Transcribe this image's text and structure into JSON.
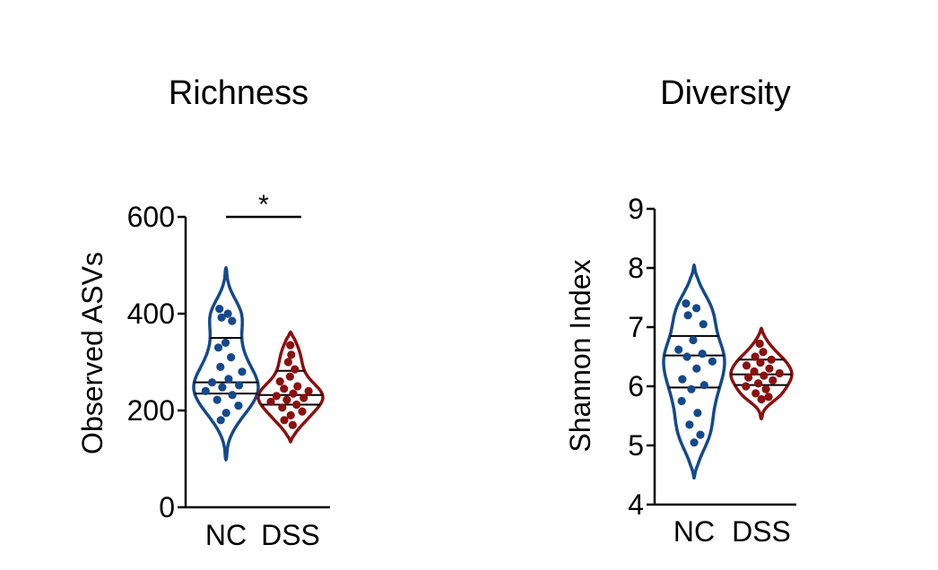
{
  "colors": {
    "NC": "#14498c",
    "DSS": "#8b1010",
    "axis": "#000000"
  },
  "chart_data": [
    {
      "type": "violin",
      "title": "Richness",
      "ylabel": "Observed ASVs",
      "ylim": [
        0,
        600
      ],
      "yticks": [
        0,
        200,
        400,
        600
      ],
      "categories": [
        "NC",
        "DSS"
      ],
      "significance": {
        "label": "*",
        "between": [
          "NC",
          "DSS"
        ]
      },
      "series": [
        {
          "name": "NC",
          "quartiles": [
            235,
            258,
            350
          ],
          "range": [
            98,
            495
          ],
          "points": [
            410,
            400,
            392,
            385,
            340,
            330,
            310,
            290,
            280,
            265,
            258,
            252,
            248,
            240,
            232,
            222,
            210,
            195,
            180
          ]
        },
        {
          "name": "DSS",
          "quartiles": [
            212,
            232,
            282
          ],
          "range": [
            135,
            362
          ],
          "points": [
            335,
            315,
            300,
            285,
            270,
            260,
            250,
            245,
            240,
            235,
            230,
            226,
            222,
            218,
            212,
            206,
            198,
            190,
            180,
            170
          ]
        }
      ]
    },
    {
      "type": "violin",
      "title": "Diversity",
      "ylabel": "Shannon Index",
      "ylim": [
        4,
        9
      ],
      "yticks": [
        4,
        5,
        6,
        7,
        8,
        9
      ],
      "categories": [
        "NC",
        "DSS"
      ],
      "series": [
        {
          "name": "NC",
          "quartiles": [
            5.98,
            6.52,
            6.85
          ],
          "range": [
            4.45,
            8.05
          ],
          "points": [
            7.4,
            7.32,
            7.2,
            7.05,
            6.78,
            6.62,
            6.55,
            6.5,
            6.42,
            6.3,
            6.12,
            6.02,
            5.95,
            5.75,
            5.55,
            5.35,
            5.18,
            5.05
          ]
        },
        {
          "name": "DSS",
          "quartiles": [
            6.02,
            6.2,
            6.45
          ],
          "range": [
            5.45,
            6.98
          ],
          "points": [
            6.72,
            6.58,
            6.5,
            6.45,
            6.4,
            6.35,
            6.3,
            6.25,
            6.22,
            6.18,
            6.15,
            6.1,
            6.05,
            6.0,
            5.95,
            5.88,
            5.82,
            5.78
          ]
        }
      ]
    }
  ]
}
